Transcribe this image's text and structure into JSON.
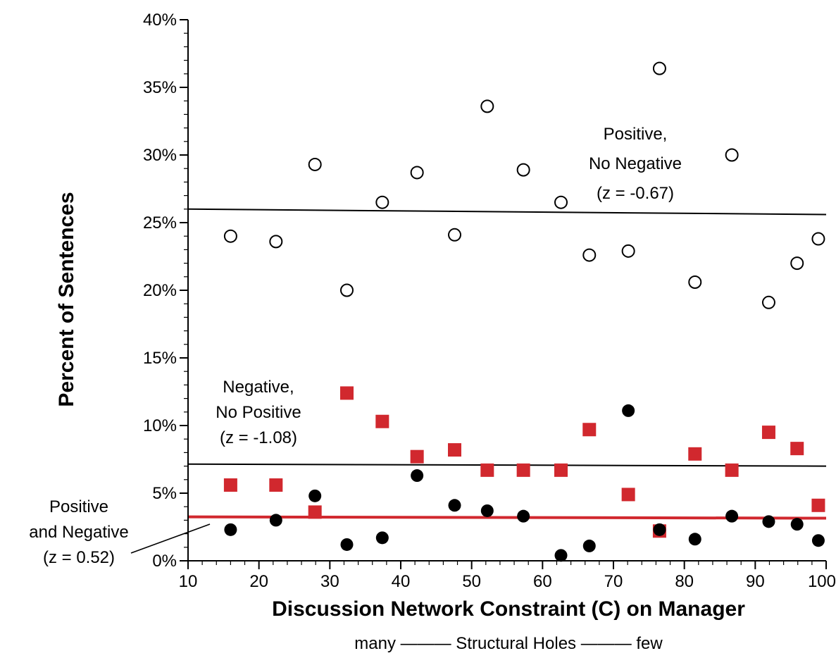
{
  "chart_data": {
    "type": "scatter",
    "xlabel": "Discussion Network Constraint (C) on Manager",
    "ylabel": "Percent of Sentences",
    "x_sublabel": "many ——— Structural Holes ——— few",
    "xlim": [
      10,
      100
    ],
    "ylim": [
      0,
      40
    ],
    "x_ticks": [
      "10",
      "20",
      "30",
      "40",
      "50",
      "60",
      "70",
      "80",
      "90",
      "100"
    ],
    "y_ticks": [
      "0%",
      "5%",
      "10%",
      "15%",
      "20%",
      "25%",
      "30%",
      "35%",
      "40%"
    ],
    "series": [
      {
        "marker": "open-circle",
        "color": "#000000",
        "x": [
          16,
          22.4,
          27.9,
          32.4,
          37.4,
          42.3,
          47.6,
          52.2,
          57.3,
          62.6,
          66.6,
          72.1,
          76.5,
          81.5,
          86.7,
          91.9,
          95.9,
          98.9
        ],
        "y": [
          24.0,
          23.6,
          29.3,
          20.0,
          26.5,
          28.7,
          24.1,
          33.6,
          28.9,
          26.5,
          22.6,
          22.9,
          36.4,
          20.6,
          30.0,
          19.1,
          22.0,
          23.8
        ]
      },
      {
        "marker": "filled-square",
        "color": "#d1282e",
        "x": [
          16,
          22.4,
          27.9,
          32.4,
          37.4,
          42.3,
          47.6,
          52.2,
          57.3,
          62.6,
          66.6,
          72.1,
          76.5,
          81.5,
          86.7,
          91.9,
          95.9,
          98.9
        ],
        "y": [
          5.6,
          5.6,
          3.6,
          12.4,
          10.3,
          7.7,
          8.2,
          6.7,
          6.7,
          6.7,
          9.7,
          4.9,
          2.2,
          7.9,
          6.7,
          9.5,
          8.3,
          4.1
        ]
      },
      {
        "marker": "filled-circle",
        "color": "#000000",
        "x": [
          16,
          22.4,
          27.9,
          32.4,
          37.4,
          42.3,
          47.6,
          52.2,
          57.3,
          62.6,
          66.6,
          72.1,
          76.5,
          81.5,
          86.7,
          91.9,
          95.9,
          98.9
        ],
        "y": [
          2.3,
          3.0,
          4.8,
          1.2,
          1.7,
          6.3,
          4.1,
          3.7,
          3.3,
          0.4,
          1.1,
          11.1,
          2.3,
          1.6,
          3.3,
          2.9,
          2.7,
          1.5
        ]
      }
    ],
    "trend_lines": [
      {
        "color": "#000000",
        "x": [
          10,
          100
        ],
        "y": [
          26.0,
          25.6
        ]
      },
      {
        "color": "#000000",
        "x": [
          10,
          100
        ],
        "y": [
          7.15,
          7.0
        ]
      },
      {
        "color": "#d1282e",
        "x": [
          10,
          100
        ],
        "y": [
          3.25,
          3.15
        ]
      }
    ],
    "annotations": [
      {
        "lines": [
          "Positive,",
          "No Negative",
          "(z = -0.67)"
        ]
      },
      {
        "lines": [
          "Negative,",
          "No Positive",
          "(z = -1.08)"
        ]
      },
      {
        "lines": [
          "Positive",
          "and Negative",
          "(z = 0.52)"
        ]
      }
    ]
  }
}
